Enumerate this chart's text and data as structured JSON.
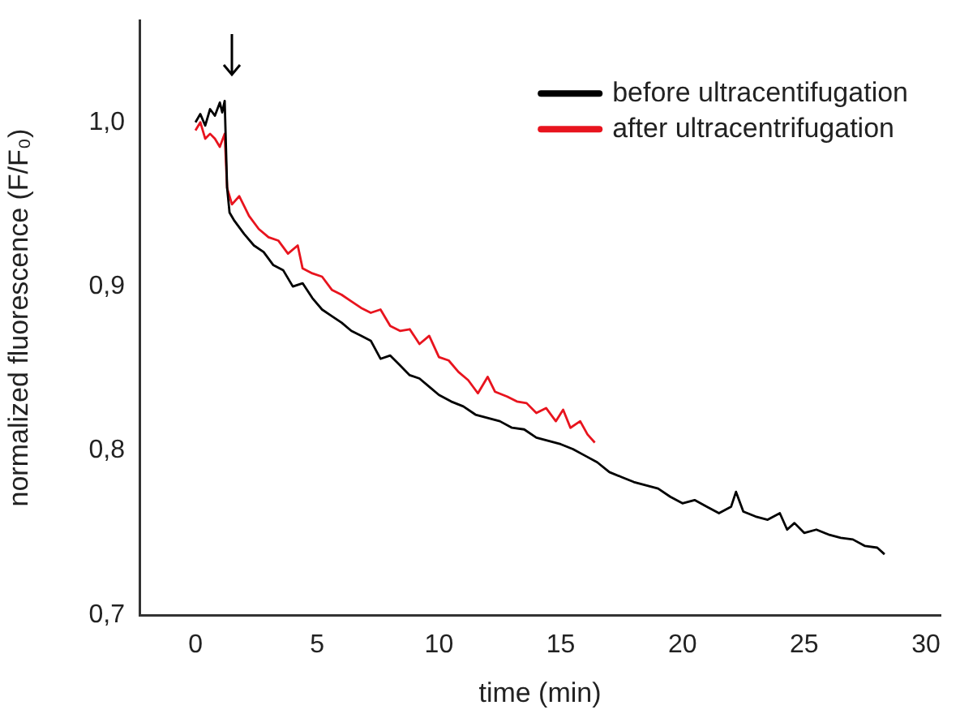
{
  "chart_data": {
    "type": "line",
    "xlabel": "time (min)",
    "ylabel": "normalized fluorescence (F/F₀)",
    "xlim": [
      -2.3,
      30.6
    ],
    "xticks": [
      0,
      5,
      10,
      15,
      20,
      25,
      30
    ],
    "ylim": [
      0.7,
      1.062
    ],
    "yticks": [
      {
        "value": 0.7,
        "label": "0,7"
      },
      {
        "value": 0.8,
        "label": "0,8"
      },
      {
        "value": 0.9,
        "label": "0,9"
      },
      {
        "value": 1.0,
        "label": "1,0"
      }
    ],
    "grid": false,
    "legend": "top right",
    "marker": "none",
    "line_style": "solid",
    "series": [
      {
        "name": "before ultracentifugation",
        "color": "#000000",
        "x": [
          0,
          0.2,
          0.4,
          0.6,
          0.8,
          1.0,
          1.1,
          1.2,
          1.3,
          1.4,
          1.6,
          2.0,
          2.4,
          2.8,
          3.2,
          3.6,
          4.0,
          4.4,
          4.8,
          5.2,
          5.6,
          6.0,
          6.4,
          6.8,
          7.2,
          7.6,
          8.0,
          8.4,
          8.8,
          9.2,
          9.6,
          10.0,
          10.5,
          11.0,
          11.5,
          12.0,
          12.5,
          13.0,
          13.5,
          14.0,
          14.5,
          15.0,
          15.5,
          16.0,
          16.5,
          17.0,
          17.5,
          18.0,
          18.5,
          19.0,
          19.5,
          20.0,
          20.5,
          21.0,
          21.5,
          22.0,
          22.2,
          22.5,
          23.0,
          23.5,
          24.0,
          24.3,
          24.6,
          25.0,
          25.5,
          26.0,
          26.5,
          27.0,
          27.5,
          28.0,
          28.3
        ],
        "values": [
          1.0,
          1.005,
          0.998,
          1.008,
          1.004,
          1.012,
          1.006,
          1.013,
          0.96,
          0.945,
          0.94,
          0.932,
          0.925,
          0.921,
          0.913,
          0.91,
          0.9,
          0.902,
          0.893,
          0.886,
          0.882,
          0.878,
          0.873,
          0.87,
          0.867,
          0.856,
          0.858,
          0.852,
          0.846,
          0.844,
          0.839,
          0.834,
          0.83,
          0.827,
          0.822,
          0.82,
          0.818,
          0.814,
          0.813,
          0.808,
          0.806,
          0.804,
          0.801,
          0.797,
          0.793,
          0.787,
          0.784,
          0.781,
          0.779,
          0.777,
          0.772,
          0.768,
          0.77,
          0.766,
          0.762,
          0.766,
          0.775,
          0.763,
          0.76,
          0.758,
          0.762,
          0.752,
          0.756,
          0.75,
          0.752,
          0.749,
          0.747,
          0.746,
          0.742,
          0.741,
          0.737
        ]
      },
      {
        "name": "after ultracentrifugation",
        "color": "#e8141e",
        "x": [
          0,
          0.2,
          0.4,
          0.6,
          0.8,
          1.0,
          1.2,
          1.3,
          1.5,
          1.8,
          2.2,
          2.6,
          3.0,
          3.4,
          3.8,
          4.2,
          4.4,
          4.8,
          5.2,
          5.6,
          6.0,
          6.4,
          6.8,
          7.2,
          7.6,
          8.0,
          8.4,
          8.8,
          9.2,
          9.6,
          10.0,
          10.4,
          10.8,
          11.2,
          11.6,
          12.0,
          12.3,
          12.8,
          13.2,
          13.6,
          14.0,
          14.4,
          14.8,
          15.1,
          15.4,
          15.8,
          16.1,
          16.4
        ],
        "values": [
          0.995,
          1.0,
          0.99,
          0.993,
          0.99,
          0.985,
          0.993,
          0.96,
          0.95,
          0.955,
          0.943,
          0.935,
          0.93,
          0.928,
          0.92,
          0.925,
          0.911,
          0.908,
          0.906,
          0.898,
          0.895,
          0.891,
          0.887,
          0.884,
          0.886,
          0.876,
          0.873,
          0.874,
          0.865,
          0.87,
          0.857,
          0.855,
          0.848,
          0.843,
          0.835,
          0.845,
          0.836,
          0.833,
          0.83,
          0.829,
          0.823,
          0.826,
          0.818,
          0.825,
          0.814,
          0.818,
          0.81,
          0.805
        ]
      }
    ]
  }
}
